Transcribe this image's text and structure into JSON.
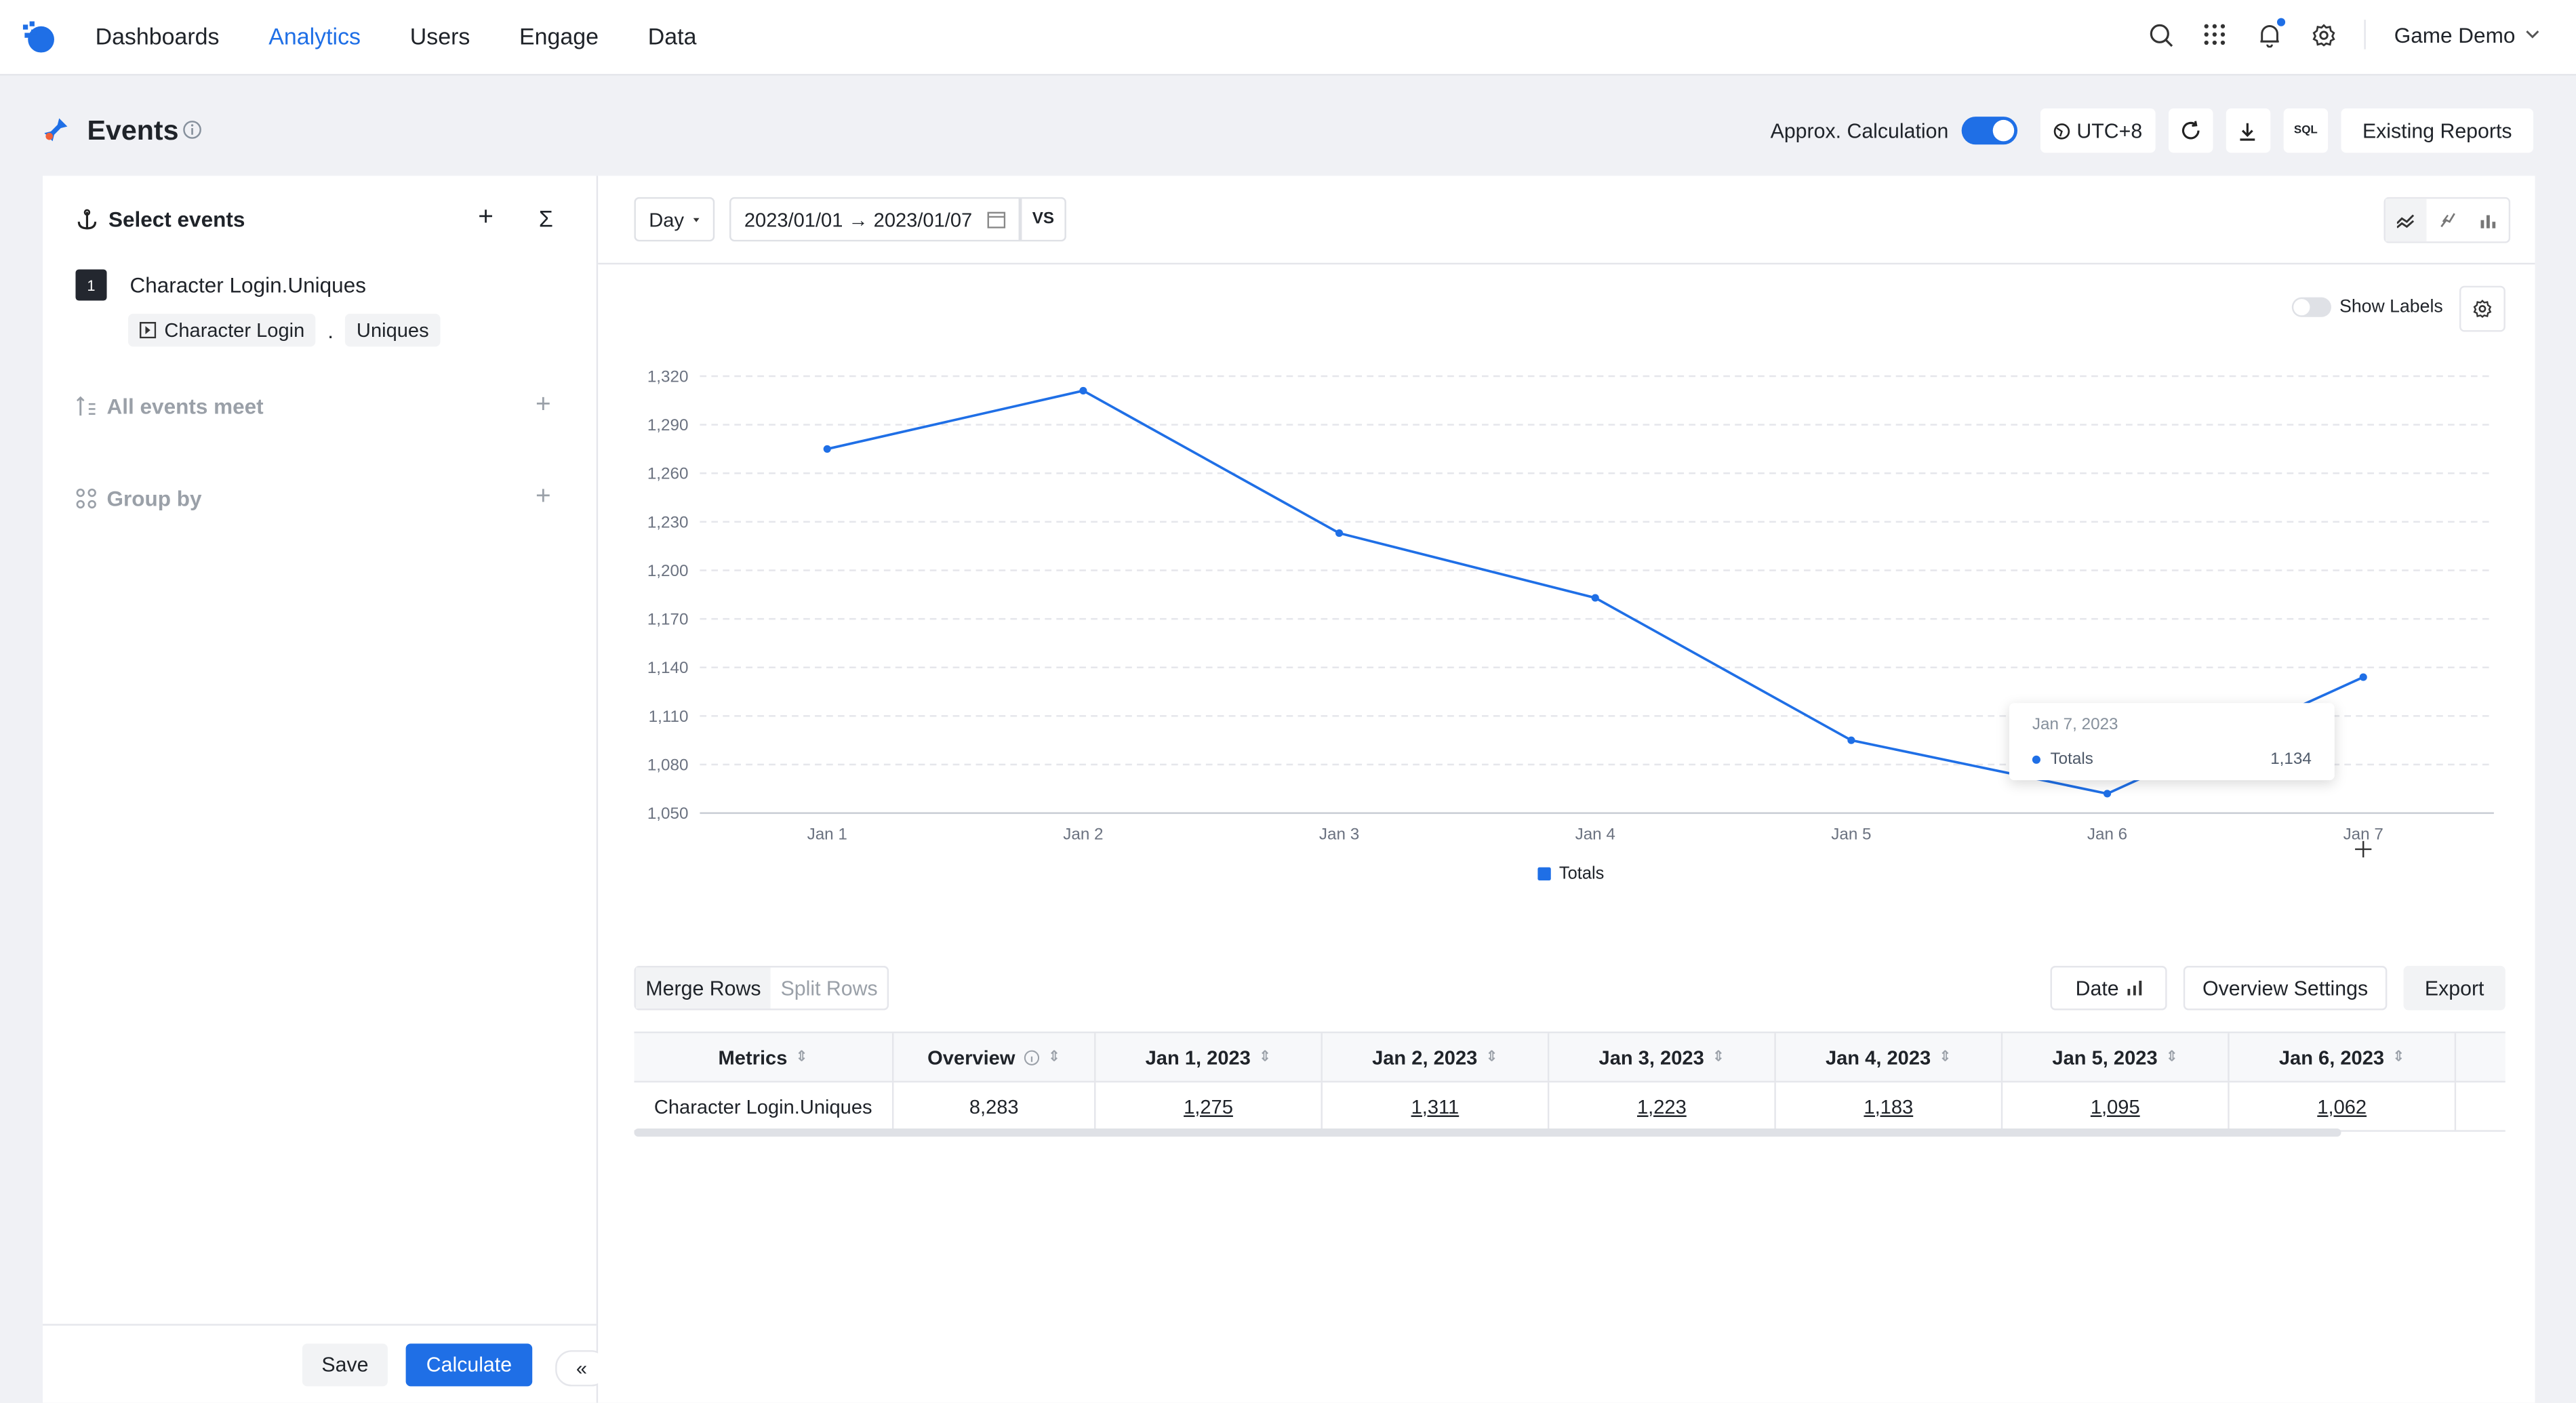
{
  "nav": {
    "items": [
      "Dashboards",
      "Analytics",
      "Users",
      "Engage",
      "Data"
    ],
    "active": "Analytics",
    "project": "Game Demo"
  },
  "header": {
    "title": "Events",
    "approx_label": "Approx. Calculation",
    "approx_enabled": true,
    "timezone": "UTC+8",
    "sql_label": "SQL",
    "existing_reports": "Existing Reports"
  },
  "left": {
    "select_events": "Select events",
    "event_index": "1",
    "event_name": "Character Login.Uniques",
    "event_chip": "Character Login",
    "dot": ".",
    "metric_chip": "Uniques",
    "all_events_meet": "All events meet",
    "group_by": "Group by",
    "save": "Save",
    "calculate": "Calculate"
  },
  "toolbar": {
    "granularity": "Day",
    "date_range": "2023/01/01 → 2023/01/07",
    "vs": "VS"
  },
  "chart_options": {
    "show_labels": "Show Labels",
    "show_labels_enabled": false
  },
  "chart_data": {
    "type": "line",
    "x": [
      "Jan 1",
      "Jan 2",
      "Jan 3",
      "Jan 4",
      "Jan 5",
      "Jan 6",
      "Jan 7"
    ],
    "series": [
      {
        "name": "Totals",
        "values": [
          1275,
          1311,
          1223,
          1183,
          1095,
          1062,
          1134
        ],
        "color": "#1f6fe6"
      }
    ],
    "ylim": [
      1050,
      1320
    ],
    "yticks": [
      "1,320",
      "1,290",
      "1,260",
      "1,230",
      "1,200",
      "1,170",
      "1,140",
      "1,110",
      "1,080",
      "1,050"
    ],
    "grid": true,
    "legend": "bottom"
  },
  "tooltip": {
    "date": "Jan 7, 2023",
    "series": "Totals",
    "value": "1,134"
  },
  "table_controls": {
    "merge_rows": "Merge Rows",
    "split_rows": "Split Rows",
    "date": "Date",
    "overview_settings": "Overview Settings",
    "export": "Export"
  },
  "table": {
    "headers": [
      "Metrics",
      "Overview",
      "Jan 1, 2023",
      "Jan 2, 2023",
      "Jan 3, 2023",
      "Jan 4, 2023",
      "Jan 5, 2023",
      "Jan 6, 2023"
    ],
    "row": [
      "Character Login.Uniques",
      "8,283",
      "1,275",
      "1,311",
      "1,223",
      "1,183",
      "1,095",
      "1,062"
    ]
  }
}
